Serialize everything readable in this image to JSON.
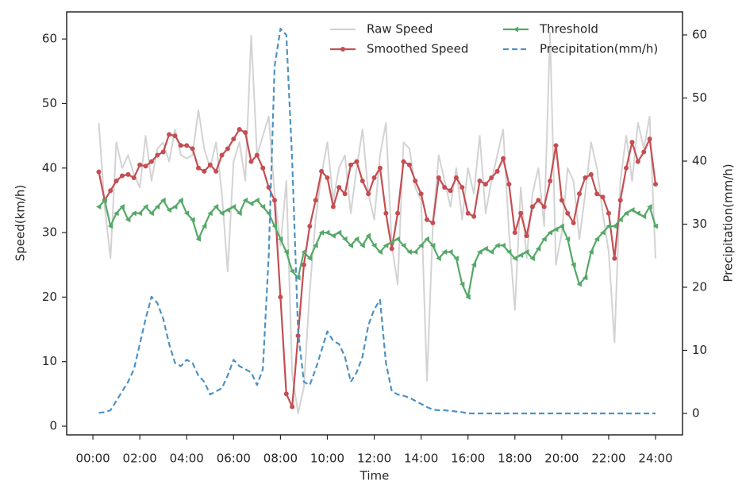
{
  "chart_data": {
    "type": "line",
    "xlabel": "Time",
    "ylabel": "Speed(km/h)",
    "y2label": "Precipitation(mm/h)",
    "x": [
      0.25,
      0.5,
      0.75,
      1,
      1.25,
      1.5,
      1.75,
      2,
      2.25,
      2.5,
      2.75,
      3,
      3.25,
      3.5,
      3.75,
      4,
      4.25,
      4.5,
      4.75,
      5,
      5.25,
      5.5,
      5.75,
      6,
      6.25,
      6.5,
      6.75,
      7,
      7.25,
      7.5,
      7.75,
      8,
      8.25,
      8.5,
      8.75,
      9,
      9.25,
      9.5,
      9.75,
      10,
      10.25,
      10.5,
      10.75,
      11,
      11.25,
      11.5,
      11.75,
      12,
      12.25,
      12.5,
      12.75,
      13,
      13.25,
      13.5,
      13.75,
      14,
      14.25,
      14.5,
      14.75,
      15,
      15.25,
      15.5,
      15.75,
      16,
      16.25,
      16.5,
      16.75,
      17,
      17.25,
      17.5,
      17.75,
      18,
      18.25,
      18.5,
      18.75,
      19,
      19.25,
      19.5,
      19.75,
      20,
      20.25,
      20.5,
      20.75,
      21,
      21.25,
      21.5,
      21.75,
      22,
      22.25,
      22.5,
      22.75,
      23,
      23.25,
      23.5,
      23.75,
      24
    ],
    "xlim": [
      -1.12,
      25.15
    ],
    "xticks": [
      {
        "value": 0,
        "label": "00:00"
      },
      {
        "value": 2,
        "label": "02:00"
      },
      {
        "value": 4,
        "label": "04:00"
      },
      {
        "value": 6,
        "label": "06:00"
      },
      {
        "value": 8,
        "label": "08:00"
      },
      {
        "value": 10,
        "label": "10:00"
      },
      {
        "value": 12,
        "label": "12:00"
      },
      {
        "value": 14,
        "label": "14:00"
      },
      {
        "value": 16,
        "label": "16:00"
      },
      {
        "value": 18,
        "label": "18:00"
      },
      {
        "value": 20,
        "label": "20:00"
      },
      {
        "value": 22,
        "label": "22:00"
      },
      {
        "value": 24,
        "label": "24:00"
      }
    ],
    "ylim": [
      -1.35,
      64.2
    ],
    "yticks": [
      0,
      10,
      20,
      30,
      40,
      50,
      60
    ],
    "y2lim": [
      -3.4,
      63.65
    ],
    "y2ticks": [
      0,
      10,
      20,
      30,
      40,
      50,
      60
    ],
    "legend": "upper right",
    "grid": false,
    "series": [
      {
        "name": "Raw Speed",
        "color": "#d3d3d3",
        "marker": "none",
        "dash": "solid",
        "values": [
          47,
          34,
          26,
          44,
          40,
          42,
          39,
          37,
          45,
          38,
          43,
          44,
          41,
          46,
          42,
          41.5,
          42,
          49,
          43,
          40,
          44,
          36,
          24,
          41,
          44,
          38,
          60.5,
          42,
          45,
          48,
          36,
          28,
          38,
          8,
          2,
          6,
          21,
          32,
          39,
          44,
          35,
          40,
          42,
          33,
          40,
          46,
          36,
          32,
          42,
          47,
          28,
          22,
          44,
          43,
          37,
          35,
          7,
          31,
          42,
          38,
          34,
          40,
          32,
          40,
          36,
          45,
          33,
          38,
          42,
          46,
          30,
          18,
          37,
          26,
          36,
          40,
          31,
          61,
          25,
          30,
          40,
          38,
          29,
          36,
          44,
          40,
          33,
          27,
          13,
          38,
          45,
          38,
          47,
          43,
          48,
          26
        ]
      },
      {
        "name": "Smoothed Speed",
        "color": "#c44e52",
        "marker": "circle",
        "dash": "solid",
        "values": [
          39.4,
          35,
          36.5,
          38,
          38.8,
          39,
          38.5,
          40.5,
          40.3,
          41,
          42,
          42.5,
          45.2,
          45,
          43.5,
          43.5,
          43,
          40,
          39.5,
          40.5,
          39.5,
          42,
          43,
          44.5,
          46,
          45.5,
          41,
          42,
          40,
          37,
          35,
          20,
          5,
          3,
          14,
          25,
          31,
          35,
          39.5,
          38.5,
          34,
          37,
          36,
          40.5,
          41,
          38,
          36,
          38.5,
          40,
          33,
          27.5,
          33,
          41,
          40.5,
          38,
          36,
          32,
          31.5,
          38.5,
          37,
          36.5,
          38.5,
          37,
          33,
          32.5,
          38,
          37.5,
          38.5,
          39.5,
          41.5,
          37.5,
          30,
          33,
          29.5,
          34,
          35,
          34,
          38,
          43.5,
          35,
          33,
          31.5,
          36,
          38.5,
          39,
          36,
          35.5,
          33,
          26,
          35,
          40,
          44,
          41,
          42.5,
          44.5,
          37.5
        ]
      },
      {
        "name": "Threshold",
        "color": "#55a868",
        "marker": "triangle",
        "dash": "solid",
        "values": [
          34,
          35,
          31,
          33,
          34,
          32,
          33,
          33,
          34,
          33,
          34,
          35,
          33.5,
          34,
          35,
          33,
          32,
          29,
          31,
          33,
          34,
          33,
          33.5,
          34,
          33,
          35,
          34.5,
          35,
          34,
          33,
          31,
          29,
          27,
          24,
          23,
          27,
          26,
          28,
          30,
          30,
          29.5,
          30,
          29,
          28,
          29,
          28,
          29.5,
          28,
          27,
          28,
          28.5,
          29,
          28,
          27,
          27,
          28,
          29,
          28,
          26,
          27,
          27,
          26,
          22,
          20,
          25,
          27,
          27.5,
          27,
          28,
          28,
          27,
          26,
          26.5,
          27,
          26,
          27.5,
          29,
          30,
          30.5,
          31,
          29,
          25,
          22,
          23,
          27,
          29,
          30,
          31,
          31,
          32,
          33,
          33.5,
          33,
          32.5,
          34,
          31
        ]
      },
      {
        "name": "Precipitation(mm/h)",
        "color": "#4c92c3",
        "marker": "none",
        "dash": "dashed",
        "axis": "y2",
        "values": [
          0.1,
          0.2,
          0.5,
          2,
          3.5,
          5,
          7,
          11,
          15,
          18.5,
          17.5,
          15,
          11,
          8,
          7.5,
          8.5,
          8,
          6,
          5,
          3,
          3.5,
          4,
          6,
          8.5,
          7.5,
          7,
          6.5,
          4.5,
          7,
          25,
          55,
          61,
          60,
          40,
          13,
          5,
          4.5,
          7,
          10,
          13,
          11.5,
          11,
          9,
          5,
          6.5,
          9,
          14,
          16.5,
          18,
          8,
          3.5,
          3,
          2.8,
          2.5,
          2,
          1.5,
          1,
          0.6,
          0.5,
          0.5,
          0.4,
          0.3,
          0.2,
          0,
          0,
          0,
          0,
          0,
          0,
          0,
          0,
          0,
          0,
          0,
          0,
          0,
          0,
          0,
          0,
          0,
          0,
          0,
          0,
          0,
          0,
          0,
          0,
          0,
          0,
          0,
          0,
          0,
          0,
          0,
          0,
          0
        ]
      }
    ]
  }
}
